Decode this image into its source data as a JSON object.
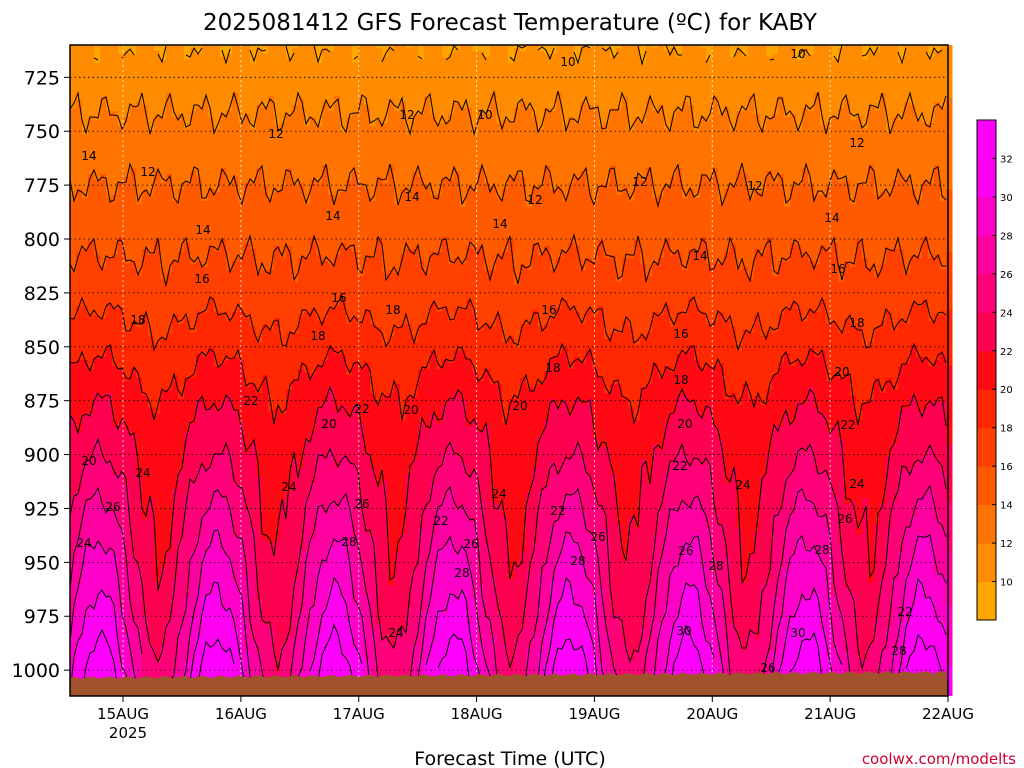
{
  "chart_data": {
    "type": "heatmap",
    "title": "2025081412 GFS Forecast Temperature (ºC) for KABY",
    "xlabel": "Forecast Time (UTC)",
    "ylabel": "",
    "watermark": "coolwx.com/modelts",
    "x_ticks": [
      "15AUG",
      "16AUG",
      "17AUG",
      "18AUG",
      "19AUG",
      "20AUG",
      "21AUG",
      "22AUG"
    ],
    "x_year_label": "2025",
    "x_range_days": [
      14.55,
      22.0
    ],
    "y_ticks": [
      725,
      750,
      775,
      800,
      825,
      850,
      875,
      900,
      925,
      950,
      975,
      1000
    ],
    "y_range_hpa": [
      710,
      1012
    ],
    "y_axis_inverted": true,
    "grid": true,
    "colorbar": {
      "levels": [
        10,
        12,
        14,
        16,
        18,
        20,
        22,
        24,
        26,
        28,
        30,
        32
      ],
      "labels": [
        "10",
        "12",
        "14",
        "16",
        "18",
        "20",
        "22",
        "24",
        "26",
        "28",
        "30",
        "32"
      ],
      "colors": [
        "#ffa500",
        "#ff8c00",
        "#ff7300",
        "#ff5a00",
        "#ff4000",
        "#ff2800",
        "#ff0a14",
        "#ff0050",
        "#ff0078",
        "#ff00a0",
        "#ff00c8",
        "#ff00f0",
        "#ff00ff"
      ]
    },
    "temperature_profile": {
      "pressure_hpa": [
        710,
        725,
        750,
        775,
        800,
        825,
        850,
        875,
        900,
        925,
        950,
        975,
        1000,
        1012
      ],
      "temp_c": [
        10,
        11,
        12.5,
        14,
        15.5,
        17,
        19,
        21,
        22.5,
        24,
        25.5,
        27,
        29,
        30
      ]
    },
    "diurnal_amplitude_c": [
      0,
      0,
      0,
      0,
      0,
      0.3,
      0.6,
      1,
      1.5,
      2.5,
      3.5,
      4,
      4.5,
      4.5
    ],
    "contour_labels": [
      "10",
      "10",
      "10",
      "12",
      "12",
      "12",
      "12",
      "12",
      "12",
      "12",
      "14",
      "14",
      "14",
      "14",
      "14",
      "14",
      "14",
      "16",
      "16",
      "16",
      "16",
      "16",
      "18",
      "18",
      "18",
      "18",
      "18",
      "18",
      "20",
      "20",
      "20",
      "20",
      "20",
      "20",
      "22",
      "22",
      "22",
      "22",
      "22",
      "22",
      "24",
      "24",
      "24",
      "24",
      "24",
      "24",
      "26",
      "26",
      "26",
      "26",
      "26",
      "26",
      "26",
      "28",
      "28",
      "28",
      "28",
      "28",
      "30",
      "30",
      "24",
      "22",
      "28"
    ],
    "terrain_color": "#a0522d"
  }
}
